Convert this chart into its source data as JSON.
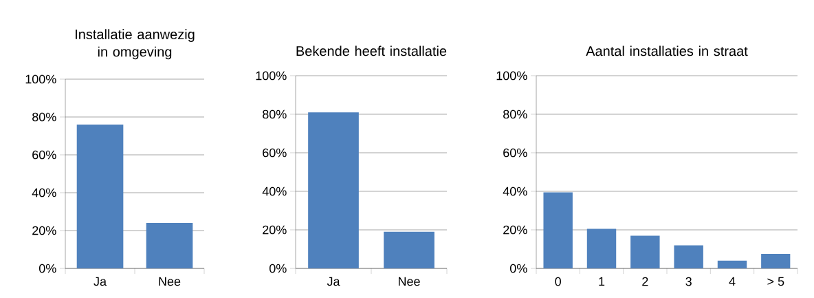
{
  "chart_data": [
    {
      "type": "bar",
      "title": "Installatie aanwezig in omgeving",
      "categories": [
        "Ja",
        "Nee"
      ],
      "values": [
        76,
        24
      ],
      "color": "#4f81bd",
      "ylim": [
        0,
        100
      ],
      "yticks": [
        {
          "value": 0,
          "label": "0%"
        },
        {
          "value": 20,
          "label": "20%"
        },
        {
          "value": 40,
          "label": "40%"
        },
        {
          "value": 60,
          "label": "60%"
        },
        {
          "value": 80,
          "label": "80%"
        },
        {
          "value": 100,
          "label": "100%"
        }
      ],
      "grid": "y"
    },
    {
      "type": "bar",
      "title": "Bekende heeft installatie",
      "categories": [
        "Ja",
        "Nee"
      ],
      "values": [
        81,
        19
      ],
      "color": "#4f81bd",
      "ylim": [
        0,
        100
      ],
      "yticks": [
        {
          "value": 0,
          "label": "0%"
        },
        {
          "value": 20,
          "label": "20%"
        },
        {
          "value": 40,
          "label": "40%"
        },
        {
          "value": 60,
          "label": "60%"
        },
        {
          "value": 80,
          "label": "80%"
        },
        {
          "value": 100,
          "label": "100%"
        }
      ],
      "grid": "y"
    },
    {
      "type": "bar",
      "title": "Aantal installaties in straat",
      "categories": [
        "0",
        "1",
        "2",
        "3",
        "4",
        "> 5"
      ],
      "values": [
        39.5,
        20.5,
        17,
        12,
        4,
        7.5
      ],
      "color": "#4f81bd",
      "ylim": [
        0,
        100
      ],
      "yticks": [
        {
          "value": 0,
          "label": "0%"
        },
        {
          "value": 20,
          "label": "20%"
        },
        {
          "value": 40,
          "label": "40%"
        },
        {
          "value": 60,
          "label": "60%"
        },
        {
          "value": 80,
          "label": "80%"
        },
        {
          "value": 100,
          "label": "100%"
        }
      ],
      "grid": "y"
    }
  ]
}
